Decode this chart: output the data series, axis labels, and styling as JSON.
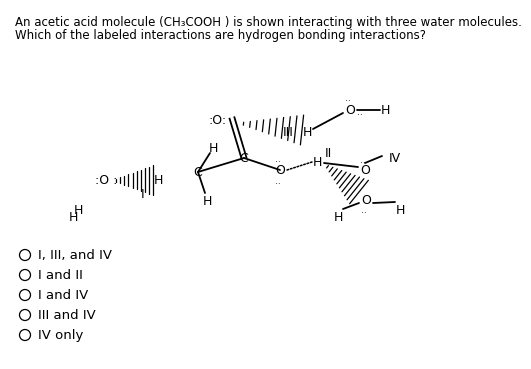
{
  "title_line1": "An acetic acid molecule (CH₃COOH ) is shown interacting with three water molecules.",
  "title_line2": "Which of the labeled interactions are hydrogen bonding interactions?",
  "choices": [
    "I, III, and IV",
    "I and II",
    "I and IV",
    "III and IV",
    "IV only"
  ],
  "bg_color": "#ffffff",
  "text_color": "#000000",
  "font_size_title": 8.5,
  "font_size_body": 9.5,
  "font_size_atom": 9.0,
  "font_size_label": 9.0
}
